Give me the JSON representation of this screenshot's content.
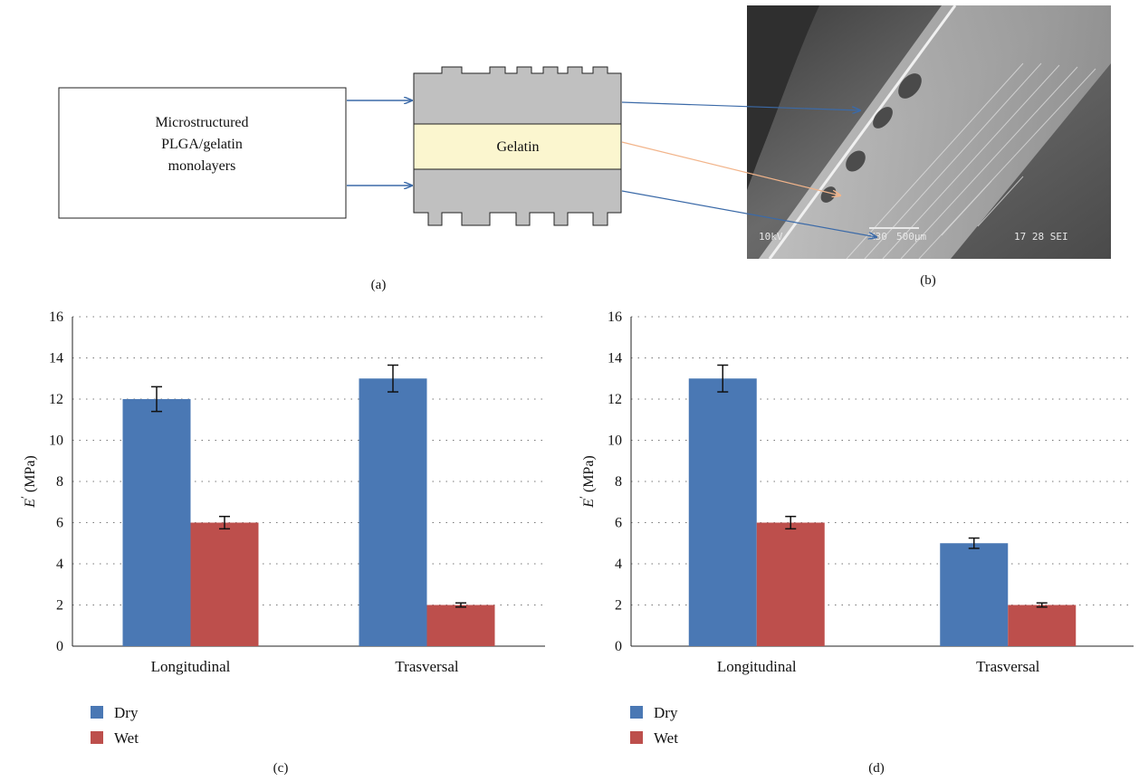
{
  "panel_a": {
    "box_text": [
      "Microstructured",
      "PLGA/gelatin",
      "monolayers"
    ],
    "middle_label": "Gelatin",
    "caption": "(a)"
  },
  "panel_b": {
    "caption": "(b)",
    "sem_readout": [
      "10kV",
      "X30",
      "500μm",
      "17 28 SEI"
    ]
  },
  "panel_c_caption": "(c)",
  "panel_d_caption": "(d)",
  "colors": {
    "dry": "#4a78b4",
    "wet": "#bd4f4c",
    "arrow_blue": "#3b6aa8",
    "arrow_orange": "#f2b48a",
    "gelatin_fill": "#fbf6cf",
    "layer_fill": "#c0c0c0"
  },
  "chart_data": [
    {
      "type": "bar",
      "categories": [
        "Longitudinal",
        "Trasversal"
      ],
      "series": [
        {
          "name": "Dry",
          "values": [
            12,
            13
          ],
          "errors": [
            0.6,
            0.65
          ]
        },
        {
          "name": "Wet",
          "values": [
            6,
            2
          ],
          "errors": [
            0.3,
            0.1
          ]
        }
      ],
      "ylabel_main": "E",
      "ylabel_prime": "′",
      "ylabel_unit": " (MPa)",
      "yticks": [
        "0",
        "2",
        "4",
        "6",
        "8",
        "10",
        "12",
        "14",
        "16"
      ],
      "ylim": [
        0,
        16
      ],
      "grid": true,
      "legend_position": "bottom-left"
    },
    {
      "type": "bar",
      "categories": [
        "Longitudinal",
        "Trasversal"
      ],
      "series": [
        {
          "name": "Dry",
          "values": [
            13,
            5
          ],
          "errors": [
            0.65,
            0.25
          ]
        },
        {
          "name": "Wet",
          "values": [
            6,
            2
          ],
          "errors": [
            0.3,
            0.1
          ]
        }
      ],
      "ylabel_main": "E",
      "ylabel_prime": "′",
      "ylabel_unit": " (MPa)",
      "yticks": [
        "0",
        "2",
        "4",
        "6",
        "8",
        "10",
        "12",
        "14",
        "16"
      ],
      "ylim": [
        0,
        16
      ],
      "grid": true,
      "legend_position": "bottom-left"
    }
  ]
}
